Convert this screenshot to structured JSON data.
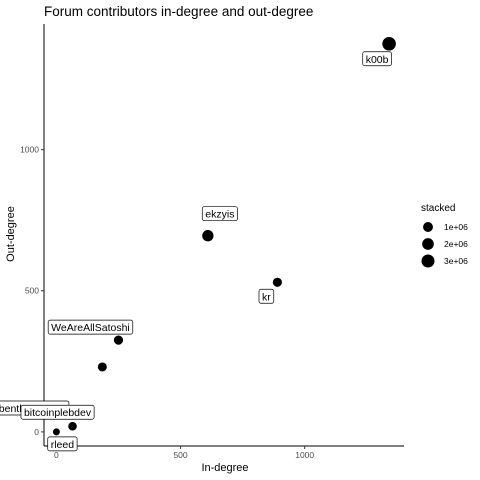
{
  "chart_data": {
    "type": "scatter",
    "title": "Forum contributors in-degree and out-degree",
    "xlabel": "In-degree",
    "ylabel": "Out-degree",
    "xlim": [
      -50,
      1400
    ],
    "ylim": [
      -50,
      1445
    ],
    "xticks": [
      0,
      500,
      1000
    ],
    "yticks": [
      0,
      500,
      1000
    ],
    "grid": false,
    "legend": {
      "title": "stacked",
      "placement": "right",
      "entries": [
        {
          "label": "1e+06",
          "value": 1000000
        },
        {
          "label": "2e+06",
          "value": 2000000
        },
        {
          "label": "3e+06",
          "value": 3000000
        }
      ]
    },
    "points": [
      {
        "label": "k00b",
        "x": 1340,
        "y": 1375,
        "stacked": 3500000
      },
      {
        "label": "ekzyis",
        "x": 610,
        "y": 695,
        "stacked": 1800000
      },
      {
        "label": "kr",
        "x": 890,
        "y": 530,
        "stacked": 700000
      },
      {
        "label": "WeAreAllSatoshi",
        "x": 250,
        "y": 325,
        "stacked": 700000
      },
      {
        "label": "benthecarman",
        "x": 185,
        "y": 230,
        "stacked": 650000
      },
      {
        "label": "bitcoinplebdev",
        "x": 65,
        "y": 20,
        "stacked": 500000
      },
      {
        "label": "rleed",
        "x": 0,
        "y": 0,
        "stacked": 100000
      }
    ]
  }
}
